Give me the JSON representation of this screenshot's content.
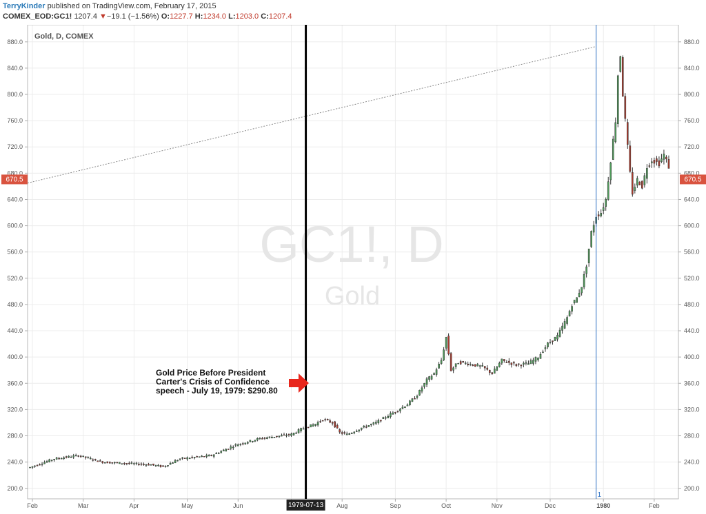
{
  "header": {
    "author": "TerryKinder",
    "published": " published on TradingView.com, February 17, 2015",
    "symbol": "COMEX_EOD:GC1!",
    "last": "1207.4",
    "change": "−19.1 (−1.56%)",
    "o_label": "O:",
    "o_value": "1227.7",
    "h_label": "H:",
    "h_value": "1234.0",
    "l_label": "L:",
    "l_value": "1203.0",
    "c_label": "C:",
    "c_value": "1207.4"
  },
  "colors": {
    "up": "#4f9a5a",
    "down": "#a93b2e",
    "price_tag": "#d9533f",
    "arrow": "#e8261c",
    "vline": "#2b6fc2"
  },
  "chart_data": {
    "type": "candlestick",
    "title": "Gold, D, COMEX",
    "watermark_symbol": "GC1!, D",
    "watermark_name": "Gold",
    "y_ticks": [
      "200.0",
      "240.0",
      "280.0",
      "320.0",
      "360.0",
      "400.0",
      "440.0",
      "480.0",
      "520.0",
      "560.0",
      "600.0",
      "640.0",
      "680.0",
      "720.0",
      "760.0",
      "800.0",
      "840.0",
      "880.0"
    ],
    "ylim": [
      184,
      906
    ],
    "x_labels": [
      "Feb",
      "Mar",
      "Apr",
      "May",
      "Jun",
      "Jul",
      "Aug",
      "Sep",
      "Oct",
      "Nov",
      "Dec",
      "1980",
      "Feb"
    ],
    "x_label_positions": [
      1,
      22,
      43,
      65,
      86,
      108,
      129,
      151,
      172,
      193,
      215,
      237,
      258
    ],
    "x_range": [
      -1,
      268
    ],
    "marker_date": "1979-07-13",
    "marker_index": 114,
    "current_price_tag": "670.5",
    "current_price": 670.5,
    "trend_line": {
      "from": [
        -1,
        665
      ],
      "to": [
        234,
        873
      ]
    },
    "blue_line_index": 234,
    "blue_line_label": "1",
    "annotation": {
      "text": [
        "Gold Price Before President",
        "Carter's Crisis of Confidence",
        "speech - July 19, 1979: $290.80"
      ]
    },
    "knots": [
      [
        0,
        232
      ],
      [
        10,
        245
      ],
      [
        20,
        250
      ],
      [
        30,
        240
      ],
      [
        40,
        238
      ],
      [
        50,
        236
      ],
      [
        55,
        233
      ],
      [
        62,
        245
      ],
      [
        75,
        250
      ],
      [
        85,
        266
      ],
      [
        95,
        276
      ],
      [
        108,
        282
      ],
      [
        112,
        290
      ],
      [
        118,
        298
      ],
      [
        121,
        305
      ],
      [
        125,
        300
      ],
      [
        128,
        285
      ],
      [
        131,
        282
      ],
      [
        137,
        292
      ],
      [
        143,
        300
      ],
      [
        150,
        315
      ],
      [
        156,
        328
      ],
      [
        160,
        342
      ],
      [
        164,
        365
      ],
      [
        167,
        375
      ],
      [
        170,
        395
      ],
      [
        172,
        430
      ],
      [
        174,
        380
      ],
      [
        177,
        392
      ],
      [
        181,
        390
      ],
      [
        187,
        385
      ],
      [
        191,
        375
      ],
      [
        195,
        395
      ],
      [
        201,
        388
      ],
      [
        206,
        390
      ],
      [
        210,
        400
      ],
      [
        214,
        420
      ],
      [
        218,
        432
      ],
      [
        222,
        460
      ],
      [
        224,
        480
      ],
      [
        226,
        490
      ],
      [
        228,
        508
      ],
      [
        230,
        540
      ],
      [
        232,
        590
      ],
      [
        234,
        615
      ],
      [
        236,
        620
      ],
      [
        238,
        640
      ],
      [
        240,
        700
      ],
      [
        242,
        760
      ],
      [
        243,
        830
      ],
      [
        244,
        860
      ],
      [
        245,
        800
      ],
      [
        247,
        720
      ],
      [
        248,
        680
      ],
      [
        249,
        650
      ],
      [
        251,
        670
      ],
      [
        253,
        660
      ],
      [
        255,
        690
      ],
      [
        257,
        700
      ],
      [
        260,
        695
      ],
      [
        262,
        708
      ],
      [
        264,
        690
      ]
    ]
  }
}
